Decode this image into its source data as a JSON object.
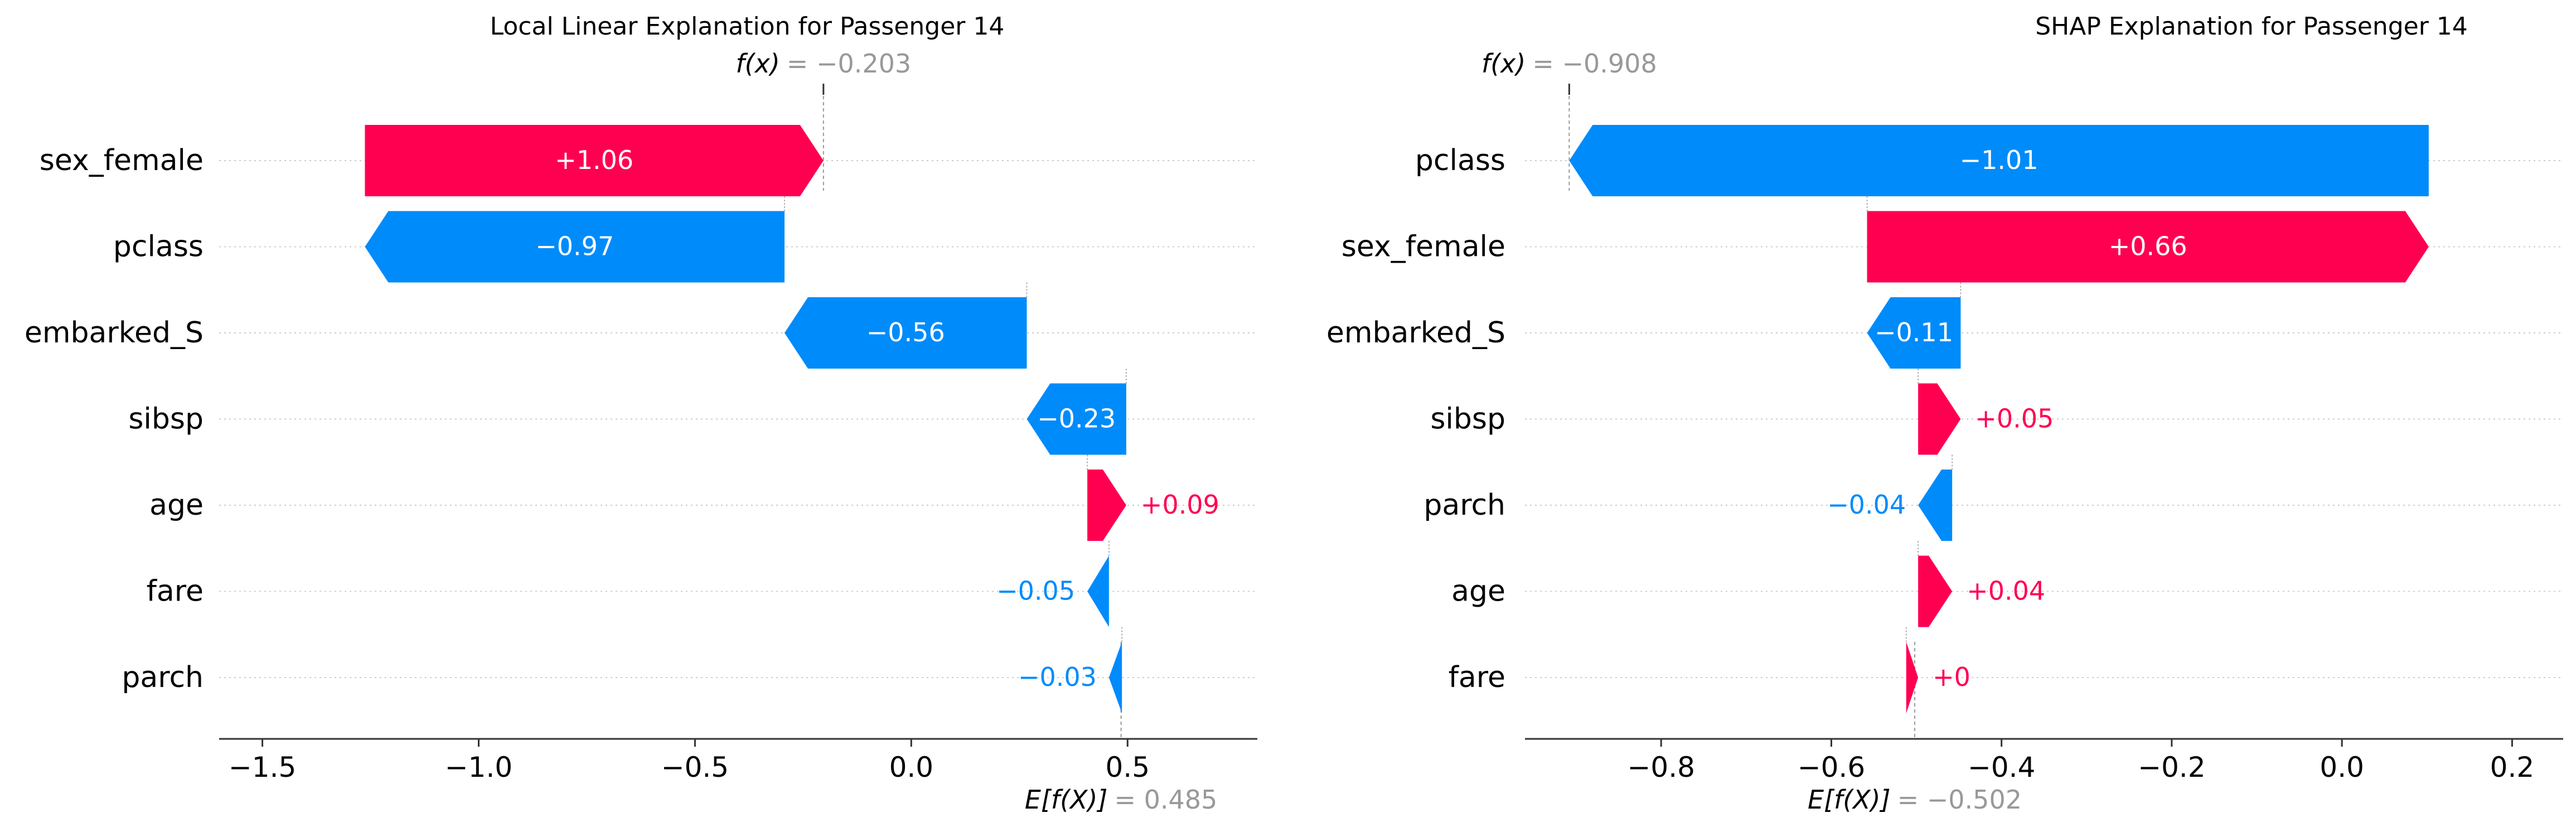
{
  "chart_data": [
    {
      "type": "waterfall",
      "title": "Local Linear Explanation for Passenger 14",
      "fx_label_prefix": "f(x)",
      "fx_label_value": "= −0.203",
      "fx": -0.203,
      "ex_label_prefix": "E[f(X)]",
      "ex_label_value": "= 0.485",
      "expected_value": 0.485,
      "xlim": [
        -1.6,
        0.8
      ],
      "xticks": [
        -1.5,
        -1.0,
        -0.5,
        0.0,
        0.5
      ],
      "xtick_labels": [
        "−1.5",
        "−1.0",
        "−0.5",
        "0.0",
        "0.5"
      ],
      "features": [
        {
          "name": "sex_female",
          "value": 1.06,
          "label": "+1.06",
          "start": -1.263,
          "end": -0.203
        },
        {
          "name": "pclass",
          "value": -0.97,
          "label": "−0.97",
          "start": -0.293,
          "end": -1.263
        },
        {
          "name": "embarked_S",
          "value": -0.56,
          "label": "−0.56",
          "start": 0.267,
          "end": -0.293
        },
        {
          "name": "sibsp",
          "value": -0.23,
          "label": "−0.23",
          "start": 0.497,
          "end": 0.267
        },
        {
          "name": "age",
          "value": 0.09,
          "label": "+0.09",
          "start": 0.407,
          "end": 0.497
        },
        {
          "name": "fare",
          "value": -0.05,
          "label": "−0.05",
          "start": 0.457,
          "end": 0.407
        },
        {
          "name": "parch",
          "value": -0.03,
          "label": "−0.03",
          "start": 0.487,
          "end": 0.457
        }
      ]
    },
    {
      "type": "waterfall",
      "title": "SHAP Explanation for Passenger 14",
      "fx_label_prefix": "f(x)",
      "fx_label_value": "= −0.908",
      "fx": -0.908,
      "ex_label_prefix": "E[f(X)]",
      "ex_label_value": "= −0.502",
      "expected_value": -0.502,
      "xlim": [
        -0.96,
        0.26
      ],
      "xticks": [
        -0.8,
        -0.6,
        -0.4,
        -0.2,
        0.0,
        0.2
      ],
      "xtick_labels": [
        "−0.8",
        "−0.6",
        "−0.4",
        "−0.2",
        "0.0",
        "0.2"
      ],
      "features": [
        {
          "name": "pclass",
          "value": -1.01,
          "label": "−1.01",
          "start": 0.102,
          "end": -0.908
        },
        {
          "name": "sex_female",
          "value": 0.66,
          "label": "+0.66",
          "start": -0.558,
          "end": 0.102
        },
        {
          "name": "embarked_S",
          "value": -0.11,
          "label": "−0.11",
          "start": -0.448,
          "end": -0.558
        },
        {
          "name": "sibsp",
          "value": 0.05,
          "label": "+0.05",
          "start": -0.498,
          "end": -0.448
        },
        {
          "name": "parch",
          "value": -0.04,
          "label": "−0.04",
          "start": -0.458,
          "end": -0.498
        },
        {
          "name": "age",
          "value": 0.04,
          "label": "+0.04",
          "start": -0.498,
          "end": -0.458
        },
        {
          "name": "fare",
          "value": 0.0,
          "label": "+0",
          "start": -0.512,
          "end": -0.498
        }
      ]
    }
  ],
  "colors": {
    "positive": "#ff0051",
    "negative": "#008bfb",
    "axis": "#333333",
    "grid": "#cccccc",
    "muted": "#999999",
    "text": "#000000"
  }
}
